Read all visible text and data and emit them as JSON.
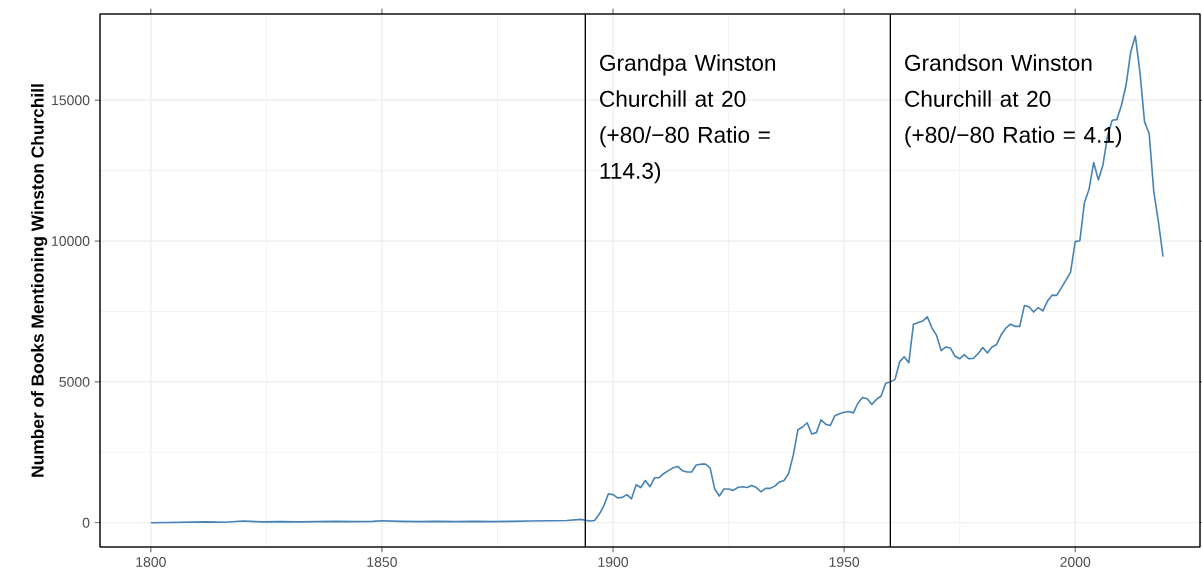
{
  "chart_data": {
    "type": "line",
    "ylabel": "Number of Books Mentioning Winston Churchill",
    "x": [
      1800,
      1804,
      1808,
      1812,
      1816,
      1820,
      1824,
      1828,
      1832,
      1836,
      1840,
      1844,
      1848,
      1850,
      1854,
      1858,
      1862,
      1866,
      1870,
      1874,
      1878,
      1882,
      1886,
      1890,
      1893,
      1895,
      1896,
      1897,
      1898,
      1899,
      1900,
      1901,
      1902,
      1903,
      1904,
      1905,
      1906,
      1907,
      1908,
      1909,
      1910,
      1911,
      1912,
      1913,
      1914,
      1915,
      1916,
      1917,
      1918,
      1919,
      1920,
      1921,
      1922,
      1923,
      1924,
      1925,
      1926,
      1927,
      1928,
      1929,
      1930,
      1931,
      1932,
      1933,
      1934,
      1935,
      1936,
      1937,
      1938,
      1939,
      1940,
      1941,
      1942,
      1943,
      1944,
      1945,
      1946,
      1947,
      1948,
      1949,
      1950,
      1951,
      1952,
      1953,
      1954,
      1955,
      1956,
      1957,
      1958,
      1959,
      1960,
      1961,
      1962,
      1963,
      1964,
      1965,
      1967,
      1968,
      1969,
      1970,
      1971,
      1972,
      1973,
      1974,
      1975,
      1976,
      1977,
      1978,
      1979,
      1980,
      1981,
      1982,
      1983,
      1984,
      1985,
      1986,
      1987,
      1988,
      1989,
      1990,
      1991,
      1992,
      1993,
      1994,
      1995,
      1996,
      1997,
      1998,
      1999,
      2000,
      2001,
      2002,
      2003,
      2004,
      2005,
      2006,
      2007,
      2008,
      2009,
      2010,
      2011,
      2012,
      2013,
      2014,
      2015,
      2016,
      2017,
      2018,
      2019
    ],
    "series": [
      {
        "color": "#4682b4",
        "values": [
          0,
          10,
          20,
          30,
          20,
          60,
          30,
          40,
          30,
          40,
          50,
          40,
          50,
          70,
          50,
          40,
          50,
          40,
          50,
          40,
          50,
          60,
          70,
          80,
          120,
          60,
          80,
          300,
          600,
          1030,
          1000,
          880,
          900,
          1000,
          850,
          1350,
          1250,
          1500,
          1280,
          1600,
          1600,
          1750,
          1850,
          1950,
          2000,
          1850,
          1800,
          1800,
          2050,
          2080,
          2080,
          1950,
          1200,
          950,
          1200,
          1200,
          1150,
          1250,
          1280,
          1250,
          1320,
          1250,
          1100,
          1220,
          1220,
          1300,
          1450,
          1500,
          1750,
          2400,
          3300,
          3400,
          3550,
          3150,
          3200,
          3650,
          3500,
          3450,
          3800,
          3870,
          3920,
          3950,
          3900,
          4250,
          4450,
          4400,
          4200,
          4380,
          4500,
          4950,
          5000,
          5080,
          5710,
          5890,
          5680,
          7050,
          7160,
          7310,
          6920,
          6650,
          6110,
          6240,
          6200,
          5910,
          5820,
          5970,
          5820,
          5840,
          6010,
          6220,
          6030,
          6240,
          6330,
          6680,
          6910,
          7050,
          6970,
          6970,
          7710,
          7670,
          7480,
          7640,
          7520,
          7870,
          8080,
          8070,
          8340,
          8610,
          8900,
          9980,
          10010,
          11370,
          11840,
          12790,
          12170,
          12700,
          13730,
          14290,
          14310,
          14820,
          15530,
          16710,
          17280,
          16000,
          14230,
          13820,
          11750,
          10690,
          9450
        ]
      }
    ],
    "xlim": [
      1789,
      2027
    ],
    "ylim": [
      -860,
      18060
    ],
    "xticks": [
      1800,
      1850,
      1900,
      1950,
      2000
    ],
    "yticks": [
      0,
      5000,
      10000,
      15000
    ],
    "grid": true,
    "marker": "none",
    "line_style": "solid",
    "annotations": [
      "Grandpa Winston Churchill at 20 (+80/−80 Ratio = 114.3)",
      "Grandson Winston Churchill at 20 (+80/−80 Ratio = 4.1)"
    ],
    "ref_lines": [
      {
        "axis": "x",
        "value": 1894,
        "color": "#000000"
      },
      {
        "axis": "x",
        "value": 1960,
        "color": "#000000"
      }
    ]
  }
}
